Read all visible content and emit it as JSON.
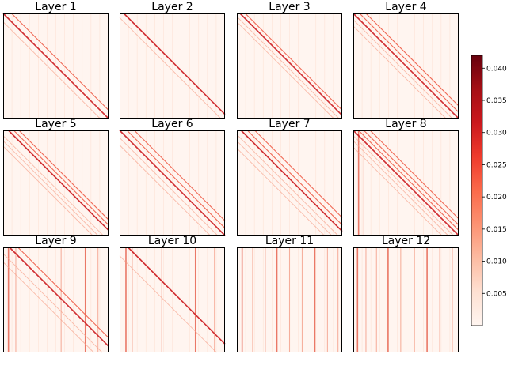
{
  "chart_data": {
    "type": "heatmap",
    "colormap": "Reds",
    "grid": "off",
    "layout": "3 rows x 4 columns",
    "panels": [
      {
        "title": "Layer 1",
        "pattern": "main-diagonal",
        "offsets": [
          0,
          0.08
        ],
        "vertical_stripes": []
      },
      {
        "title": "Layer 2",
        "pattern": "shifted-diagonal",
        "offsets": [
          0.04
        ],
        "vertical_stripes": []
      },
      {
        "title": "Layer 3",
        "pattern": "shifted-diagonal",
        "offsets": [
          0.03,
          0.08
        ],
        "vertical_stripes": []
      },
      {
        "title": "Layer 4",
        "pattern": "multi-diagonal",
        "offsets": [
          0,
          0.06,
          0.12
        ],
        "vertical_stripes": []
      },
      {
        "title": "Layer 5",
        "pattern": "multi-diagonal",
        "offsets": [
          0.05,
          0.1,
          0.15
        ],
        "vertical_stripes": []
      },
      {
        "title": "Layer 6",
        "pattern": "multi-diagonal",
        "offsets": [
          0,
          0.07,
          0.14
        ],
        "vertical_stripes": []
      },
      {
        "title": "Layer 7",
        "pattern": "multi-diagonal",
        "offsets": [
          0.04,
          0.1,
          0.17
        ],
        "vertical_stripes": []
      },
      {
        "title": "Layer 8",
        "pattern": "multi-diagonal",
        "offsets": [
          0,
          0.05,
          0.1,
          0.16
        ],
        "vertical_stripes": [
          0.05,
          0.1
        ]
      },
      {
        "title": "Layer 9",
        "pattern": "diagonal+stripes",
        "offsets": [
          0.06,
          0.14
        ],
        "vertical_stripes": [
          0.05,
          0.12,
          0.55,
          0.78,
          0.9
        ]
      },
      {
        "title": "Layer 10",
        "pattern": "diagonal+stripes",
        "offsets": [
          0.08
        ],
        "vertical_stripes": [
          0.06,
          0.12,
          0.4,
          0.72,
          0.9
        ]
      },
      {
        "title": "Layer 11",
        "pattern": "stripes",
        "offsets": [],
        "vertical_stripes": [
          0.05,
          0.15,
          0.27,
          0.38,
          0.5,
          0.62,
          0.74,
          0.86,
          0.96
        ]
      },
      {
        "title": "Layer 12",
        "pattern": "stripes",
        "offsets": [],
        "vertical_stripes": [
          0.04,
          0.12,
          0.22,
          0.33,
          0.45,
          0.58,
          0.7,
          0.82,
          0.94
        ]
      }
    ],
    "colorbar": {
      "min": 0,
      "max": 0.042,
      "ticks": [
        0.005,
        0.01,
        0.015,
        0.02,
        0.025,
        0.03,
        0.035,
        0.04
      ],
      "tick_labels": [
        "0.005",
        "0.010",
        "0.015",
        "0.020",
        "0.025",
        "0.030",
        "0.035",
        "0.040"
      ]
    }
  }
}
